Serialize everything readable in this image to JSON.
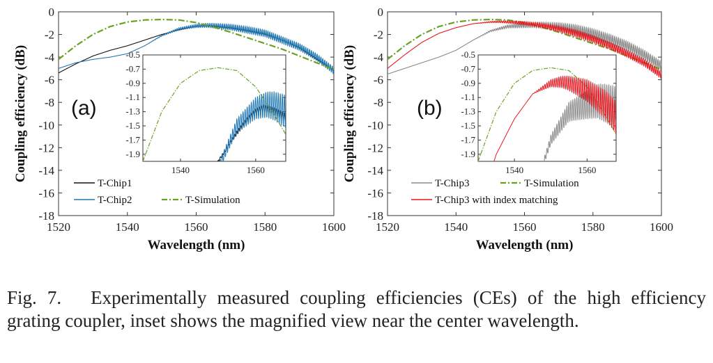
{
  "caption": {
    "label": "Fig. 7.",
    "text": "Experimentally measured coupling efficiencies (CEs) of the high efficiency grating coupler, inset shows the magnified view near the center wavelength."
  },
  "chart_data": [
    {
      "type": "line",
      "panel_label": "(a)",
      "xlabel": "Wavelength (nm)",
      "ylabel": "Coupling efficiency (dB)",
      "xlim": [
        1520,
        1600
      ],
      "ylim": [
        -18,
        0
      ],
      "xticks": [
        "1520",
        "1540",
        "1560",
        "1580",
        "1600"
      ],
      "yticks": [
        "0",
        "-2",
        "-4",
        "-6",
        "-8",
        "-10",
        "-12",
        "-14",
        "-16",
        "-18"
      ],
      "legend": [
        "T-Chip1",
        "T-Chip2",
        "T-Simulation"
      ],
      "series": [
        {
          "name": "T-Chip1",
          "color": "#111111",
          "ripple": 0.08,
          "x": [
            1520,
            1525,
            1530,
            1535,
            1540,
            1545,
            1550,
            1555,
            1558,
            1560,
            1562,
            1565,
            1570,
            1575,
            1580,
            1585,
            1590,
            1595,
            1600
          ],
          "y": [
            -5.4,
            -4.6,
            -3.9,
            -3.4,
            -3.0,
            -2.5,
            -2.0,
            -1.6,
            -1.4,
            -1.3,
            -1.25,
            -1.3,
            -1.45,
            -1.7,
            -2.0,
            -2.5,
            -3.2,
            -4.2,
            -5.2
          ]
        },
        {
          "name": "T-Chip2",
          "color": "#1f77b4",
          "ripple": 0.3,
          "x": [
            1520,
            1525,
            1530,
            1535,
            1540,
            1545,
            1550,
            1555,
            1560,
            1563,
            1565,
            1570,
            1575,
            1580,
            1585,
            1590,
            1595,
            1600
          ],
          "y": [
            -5.0,
            -4.5,
            -4.2,
            -4.0,
            -3.7,
            -3.0,
            -2.1,
            -1.5,
            -1.25,
            -1.2,
            -1.22,
            -1.35,
            -1.6,
            -1.9,
            -2.5,
            -3.1,
            -4.0,
            -5.2
          ]
        },
        {
          "name": "T-Simulation",
          "color": "#6aa121",
          "dash": true,
          "x": [
            1520,
            1525,
            1530,
            1535,
            1540,
            1545,
            1550,
            1555,
            1560,
            1565,
            1570,
            1575,
            1580,
            1585,
            1590,
            1595,
            1600
          ],
          "y": [
            -4.2,
            -3.0,
            -2.0,
            -1.3,
            -0.9,
            -0.72,
            -0.68,
            -0.72,
            -0.95,
            -1.35,
            -1.8,
            -2.3,
            -2.8,
            -3.3,
            -3.9,
            -4.5,
            -5.1
          ]
        }
      ],
      "inset": {
        "xlim": [
          1530,
          1568
        ],
        "ylim": [
          -2.0,
          -0.5
        ],
        "xticks": [
          "1540",
          "1560"
        ],
        "yticks": [
          "-0.5",
          "-0.7",
          "-0.9",
          "-1.1",
          "-1.3",
          "-1.5",
          "-1.7",
          "-1.9"
        ]
      }
    },
    {
      "type": "line",
      "panel_label": "(b)",
      "xlabel": "Wavelength (nm)",
      "ylabel": "Coupling efficiency (dB)",
      "xlim": [
        1520,
        1600
      ],
      "ylim": [
        -18,
        0
      ],
      "xticks": [
        "1520",
        "1540",
        "1560",
        "1580",
        "1600"
      ],
      "yticks": [
        "0",
        "-2",
        "-4",
        "-6",
        "-8",
        "-10",
        "-12",
        "-14",
        "-16",
        "-18"
      ],
      "legend": [
        "T-Chip3",
        "T-Simulation",
        "T-Chip3 with index matching"
      ],
      "series": [
        {
          "name": "T-Chip3",
          "color": "#888888",
          "ripple": 0.4,
          "x": [
            1520,
            1525,
            1530,
            1535,
            1540,
            1545,
            1550,
            1555,
            1560,
            1563,
            1565,
            1570,
            1575,
            1580,
            1585,
            1590,
            1595,
            1600
          ],
          "y": [
            -5.5,
            -5.0,
            -4.5,
            -4.0,
            -3.4,
            -2.5,
            -1.7,
            -1.3,
            -1.2,
            -1.15,
            -1.18,
            -1.3,
            -1.55,
            -1.9,
            -2.4,
            -3.0,
            -3.8,
            -4.8
          ]
        },
        {
          "name": "T-Simulation",
          "color": "#6aa121",
          "dash": true,
          "x": [
            1520,
            1525,
            1530,
            1535,
            1540,
            1545,
            1550,
            1555,
            1560,
            1565,
            1570,
            1575,
            1580,
            1585,
            1590,
            1595,
            1600
          ],
          "y": [
            -4.2,
            -3.0,
            -2.0,
            -1.3,
            -0.9,
            -0.72,
            -0.68,
            -0.72,
            -0.95,
            -1.35,
            -1.8,
            -2.3,
            -2.8,
            -3.3,
            -3.9,
            -4.5,
            -5.1
          ]
        },
        {
          "name": "T-Chip3 with index matching",
          "color": "#e8141c",
          "ripple": 0.3,
          "x": [
            1520,
            1525,
            1530,
            1535,
            1540,
            1545,
            1550,
            1553,
            1555,
            1560,
            1565,
            1570,
            1575,
            1580,
            1585,
            1590,
            1595,
            1600
          ],
          "y": [
            -5.0,
            -3.8,
            -2.7,
            -1.9,
            -1.4,
            -1.05,
            -0.9,
            -0.88,
            -0.9,
            -1.0,
            -1.2,
            -1.5,
            -1.9,
            -2.4,
            -3.0,
            -3.7,
            -4.5,
            -5.6
          ]
        }
      ],
      "inset": {
        "xlim": [
          1530,
          1568
        ],
        "ylim": [
          -2.0,
          -0.5
        ],
        "xticks": [
          "1540",
          "1560"
        ],
        "yticks": [
          "-0.5",
          "-0.7",
          "-0.9",
          "-1.1",
          "-1.3",
          "-1.5",
          "-1.7",
          "-1.9"
        ]
      }
    }
  ]
}
